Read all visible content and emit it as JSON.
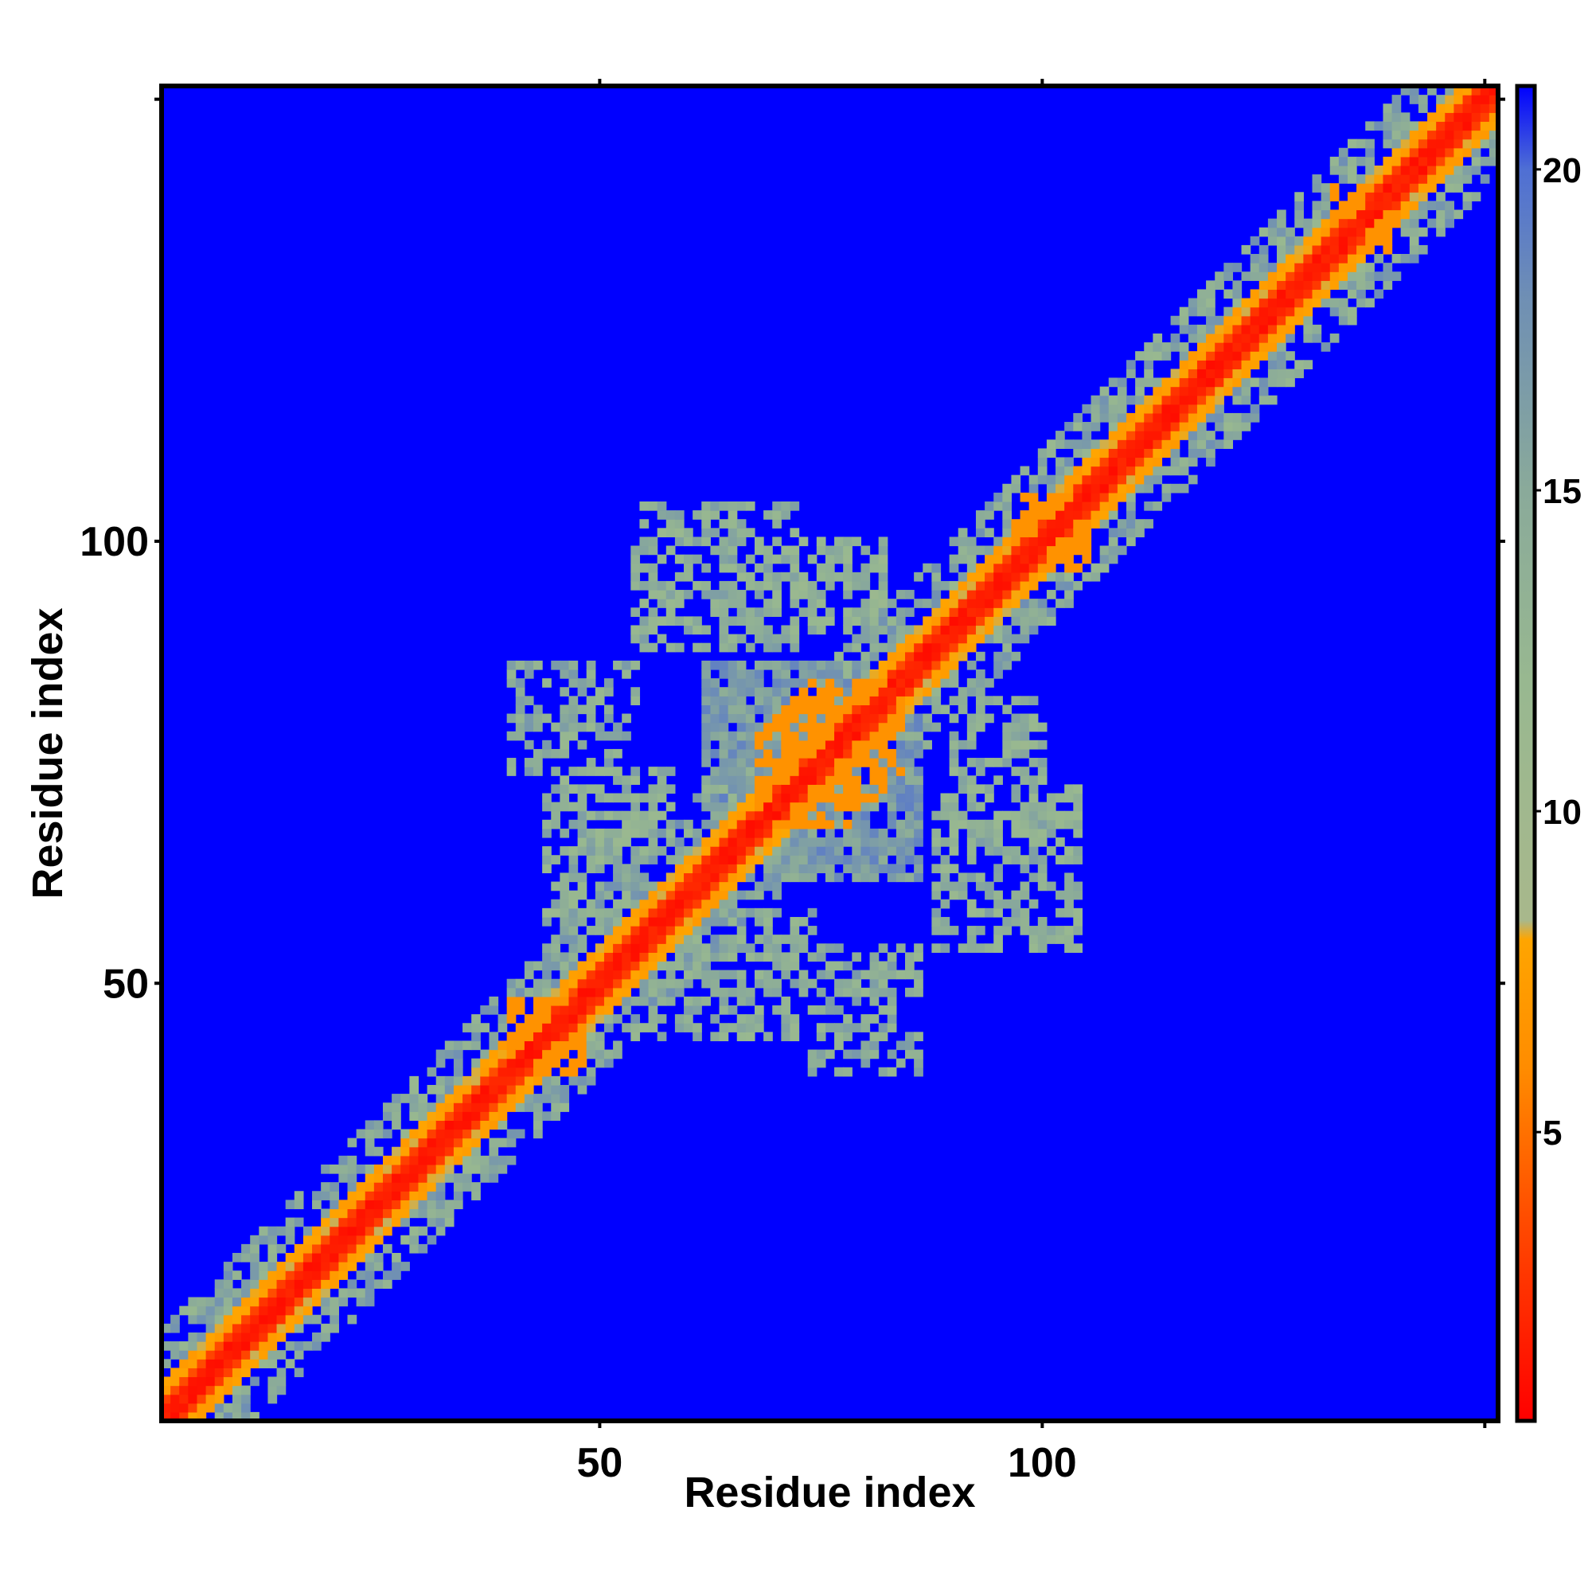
{
  "chart_data": {
    "type": "heatmap",
    "title": "",
    "xlabel": "Residue index",
    "ylabel": "Residue index",
    "n_residues": 151,
    "x_range": [
      1,
      151
    ],
    "y_range": [
      1,
      151
    ],
    "x_ticks": [
      50,
      100
    ],
    "y_ticks": [
      50,
      100
    ],
    "colorbar": {
      "range": [
        0.5,
        21.3
      ],
      "ticks": [
        5,
        10,
        15,
        20
      ],
      "stops": [
        {
          "value": 0.5,
          "color": "#ff0000"
        },
        {
          "value": 3.5,
          "color": "#ff4800"
        },
        {
          "value": 6.0,
          "color": "#ff8c00"
        },
        {
          "value": 8.0,
          "color": "#ffa500"
        },
        {
          "value": 8.3,
          "color": "#a8b88c"
        },
        {
          "value": 12.0,
          "color": "#98b890"
        },
        {
          "value": 15.0,
          "color": "#8aaa9a"
        },
        {
          "value": 18.0,
          "color": "#6f8fb4"
        },
        {
          "value": 20.0,
          "color": "#4f6fd4"
        },
        {
          "value": 21.3,
          "color": "#0000ff"
        }
      ]
    },
    "background_color": "#0000ff",
    "contact_cutoff": 21,
    "diagonal_band": [
      {
        "max_offset": 1,
        "value": 1.0
      },
      {
        "max_offset": 2,
        "value": 2.5
      },
      {
        "max_offset": 4,
        "value": 7.0
      },
      {
        "max_offset": 10,
        "value": 12.0
      }
    ],
    "contact_regions": [
      {
        "x": [
          88,
          104
        ],
        "y": [
          54,
          72
        ],
        "value": 11.5,
        "density": 0.55
      },
      {
        "x": [
          56,
          74
        ],
        "y": [
          44,
          58
        ],
        "value": 11.5,
        "density": 0.6
      },
      {
        "x": [
          40,
          54
        ],
        "y": [
          74,
          86
        ],
        "value": 12.0,
        "density": 0.55
      },
      {
        "x": [
          70,
          82
        ],
        "y": [
          90,
          100
        ],
        "value": 11.0,
        "density": 0.6
      },
      {
        "x": [
          62,
          80
        ],
        "y": [
          70,
          86
        ],
        "value": 14.0,
        "density": 0.9
      }
    ],
    "orange_patches": [
      {
        "x": [
          68,
          84
        ],
        "y": [
          68,
          84
        ],
        "value": 6.5
      },
      {
        "x": [
          40,
          48
        ],
        "y": [
          40,
          48
        ],
        "value": 6.5
      },
      {
        "x": [
          97,
          105
        ],
        "y": [
          97,
          105
        ],
        "value": 6.5
      },
      {
        "x": [
          133,
          140
        ],
        "y": [
          133,
          140
        ],
        "value": 6.5
      }
    ]
  }
}
